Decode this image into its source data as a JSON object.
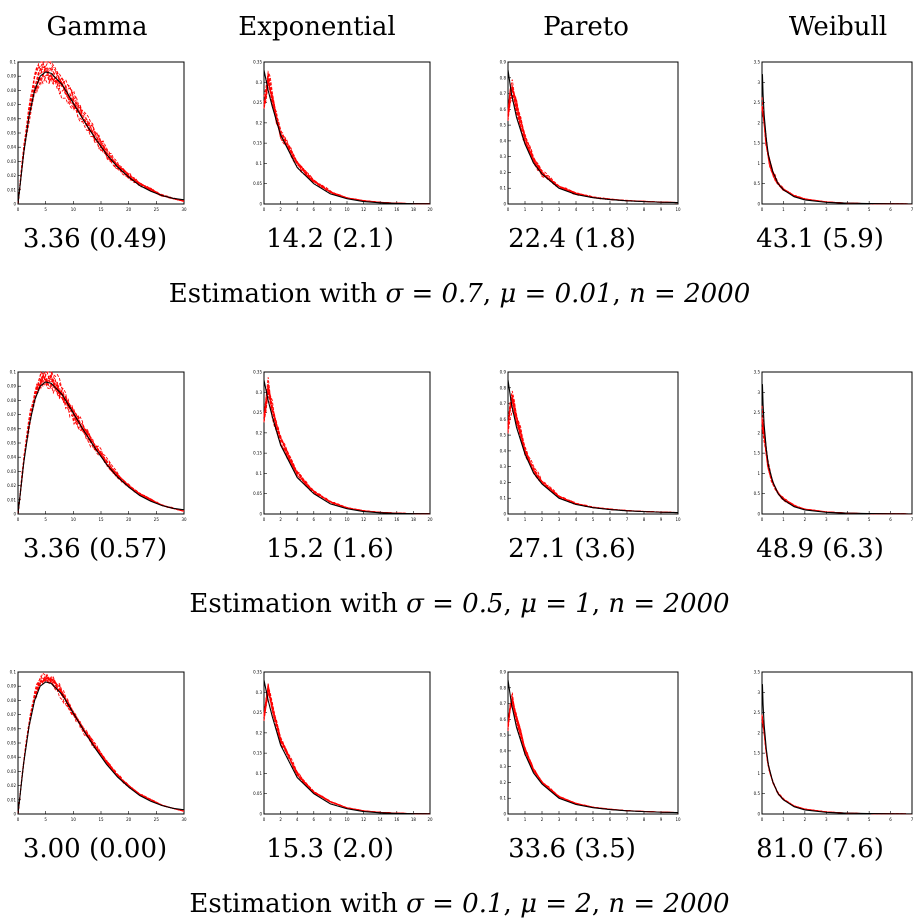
{
  "column_headers": [
    "Gamma",
    "Exponential",
    "Pareto",
    "Weibull"
  ],
  "rows": [
    {
      "stats": [
        "3.36 (0.49)",
        "14.2 (2.1)",
        "22.4 (1.8)",
        "43.1 (5.9)"
      ],
      "caption_prefix": "Estimation with ",
      "sigma": "σ = 0.7",
      "mu": "μ = 0.01",
      "n": "n = 2000"
    },
    {
      "stats": [
        "3.36 (0.57)",
        "15.2 (1.6)",
        "27.1 (3.6)",
        "48.9 (6.3)"
      ],
      "caption_prefix": "Estimation with ",
      "sigma": "σ = 0.5",
      "mu": "μ = 1",
      "n": "n = 2000"
    },
    {
      "stats": [
        "3.00 (0.00)",
        "15.3 (2.0)",
        "33.6 (3.5)",
        "81.0 (7.6)"
      ],
      "caption_prefix": "Estimation with ",
      "sigma": "σ = 0.1",
      "mu": "μ = 2",
      "n": "n = 2000"
    }
  ],
  "chart_data": [
    {
      "type": "line",
      "distribution": "Gamma",
      "xlim": [
        0,
        30
      ],
      "ylim": [
        0,
        0.1
      ],
      "xticks": [
        "0",
        "5",
        "10",
        "15",
        "20",
        "25",
        "30"
      ],
      "yticks": [
        "0",
        "0.01",
        "0.02",
        "0.03",
        "0.04",
        "0.05",
        "0.06",
        "0.07",
        "0.08",
        "0.09",
        "0.1"
      ],
      "series": [
        {
          "style": "solid",
          "color": "#000000",
          "x": [
            0,
            1,
            2,
            3,
            4,
            5,
            6,
            8,
            10,
            12,
            14,
            16,
            18,
            20,
            22,
            24,
            26,
            28,
            30
          ],
          "y": [
            0,
            0.035,
            0.062,
            0.08,
            0.09,
            0.093,
            0.092,
            0.084,
            0.071,
            0.058,
            0.046,
            0.035,
            0.026,
            0.019,
            0.013,
            0.009,
            0.006,
            0.004,
            0.003
          ]
        },
        {
          "style": "dashed",
          "color": "#ff0000",
          "x": [
            0,
            1,
            2,
            3,
            4,
            5,
            6,
            8,
            10,
            12,
            14,
            16,
            18,
            20,
            22,
            24,
            26,
            28,
            30
          ],
          "y": [
            0,
            0.037,
            0.064,
            0.082,
            0.092,
            0.094,
            0.093,
            0.085,
            0.072,
            0.059,
            0.047,
            0.036,
            0.027,
            0.02,
            0.014,
            0.01,
            0.006,
            0.004,
            0.002
          ]
        }
      ],
      "colors": {
        "true_density": "#000000",
        "estimates": "#ff0000"
      }
    },
    {
      "type": "line",
      "distribution": "Exponential",
      "xlim": [
        0,
        20
      ],
      "ylim": [
        0,
        0.35
      ],
      "xticks": [
        "0",
        "2",
        "4",
        "6",
        "8",
        "10",
        "12",
        "14",
        "16",
        "18",
        "20"
      ],
      "yticks": [
        "0",
        "0.05",
        "0.1",
        "0.15",
        "0.2",
        "0.25",
        "0.3",
        "0.35"
      ],
      "series": [
        {
          "style": "solid",
          "color": "#000000",
          "x": [
            0,
            0.5,
            1,
            2,
            3,
            4,
            5,
            6,
            8,
            10,
            12,
            14,
            16,
            18,
            20
          ],
          "y": [
            0.33,
            0.28,
            0.24,
            0.17,
            0.13,
            0.09,
            0.07,
            0.05,
            0.025,
            0.013,
            0.006,
            0.003,
            0.0015,
            0.0008,
            0.0004
          ]
        },
        {
          "style": "dashed",
          "color": "#ff0000",
          "x": [
            0,
            0.5,
            1,
            2,
            3,
            4,
            5,
            6,
            8,
            10,
            12,
            14,
            16,
            18,
            20
          ],
          "y": [
            0.24,
            0.31,
            0.26,
            0.18,
            0.14,
            0.1,
            0.075,
            0.055,
            0.03,
            0.015,
            0.008,
            0.004,
            0.002,
            0.001,
            0.0005
          ]
        }
      ]
    },
    {
      "type": "line",
      "distribution": "Pareto",
      "xlim": [
        0,
        10
      ],
      "ylim": [
        0,
        0.9
      ],
      "xticks": [
        "0",
        "1",
        "2",
        "3",
        "4",
        "5",
        "6",
        "7",
        "8",
        "9",
        "10"
      ],
      "yticks": [
        "0",
        "0.1",
        "0.2",
        "0.3",
        "0.4",
        "0.5",
        "0.6",
        "0.7",
        "0.8",
        "0.9"
      ],
      "series": [
        {
          "style": "solid",
          "color": "#000000",
          "x": [
            0,
            0.2,
            0.5,
            1,
            1.5,
            2,
            3,
            4,
            5,
            6,
            7,
            8,
            9,
            10
          ],
          "y": [
            0.85,
            0.7,
            0.55,
            0.38,
            0.26,
            0.19,
            0.1,
            0.06,
            0.04,
            0.028,
            0.02,
            0.015,
            0.011,
            0.009
          ]
        },
        {
          "style": "dashed",
          "color": "#ff0000",
          "x": [
            0,
            0.2,
            0.5,
            1,
            1.5,
            2,
            3,
            4,
            5,
            6,
            7,
            8,
            9,
            10
          ],
          "y": [
            0.55,
            0.75,
            0.6,
            0.4,
            0.28,
            0.2,
            0.11,
            0.065,
            0.042,
            0.03,
            0.021,
            0.016,
            0.012,
            0.009
          ]
        }
      ]
    },
    {
      "type": "line",
      "distribution": "Weibull",
      "xlim": [
        0,
        7
      ],
      "ylim": [
        0,
        3.5
      ],
      "xticks": [
        "0",
        "1",
        "2",
        "3",
        "4",
        "5",
        "6",
        "7"
      ],
      "yticks": [
        "0",
        "0.5",
        "1",
        "1.5",
        "2",
        "2.5",
        "3",
        "3.5"
      ],
      "series": [
        {
          "style": "solid",
          "color": "#000000",
          "x": [
            0.02,
            0.05,
            0.1,
            0.2,
            0.3,
            0.5,
            0.75,
            1,
            1.5,
            2,
            3,
            4,
            5,
            6,
            7
          ],
          "y": [
            3.2,
            2.7,
            2.2,
            1.6,
            1.2,
            0.8,
            0.5,
            0.35,
            0.18,
            0.1,
            0.04,
            0.02,
            0.01,
            0.005,
            0.003
          ]
        },
        {
          "style": "dashed",
          "color": "#ff0000",
          "x": [
            0.02,
            0.05,
            0.1,
            0.2,
            0.3,
            0.5,
            0.75,
            1,
            1.5,
            2,
            3,
            4,
            5,
            6,
            7
          ],
          "y": [
            2.4,
            2.3,
            2.0,
            1.5,
            1.15,
            0.78,
            0.5,
            0.36,
            0.2,
            0.12,
            0.05,
            0.02,
            0.01,
            0.005,
            0.002
          ]
        }
      ]
    }
  ]
}
